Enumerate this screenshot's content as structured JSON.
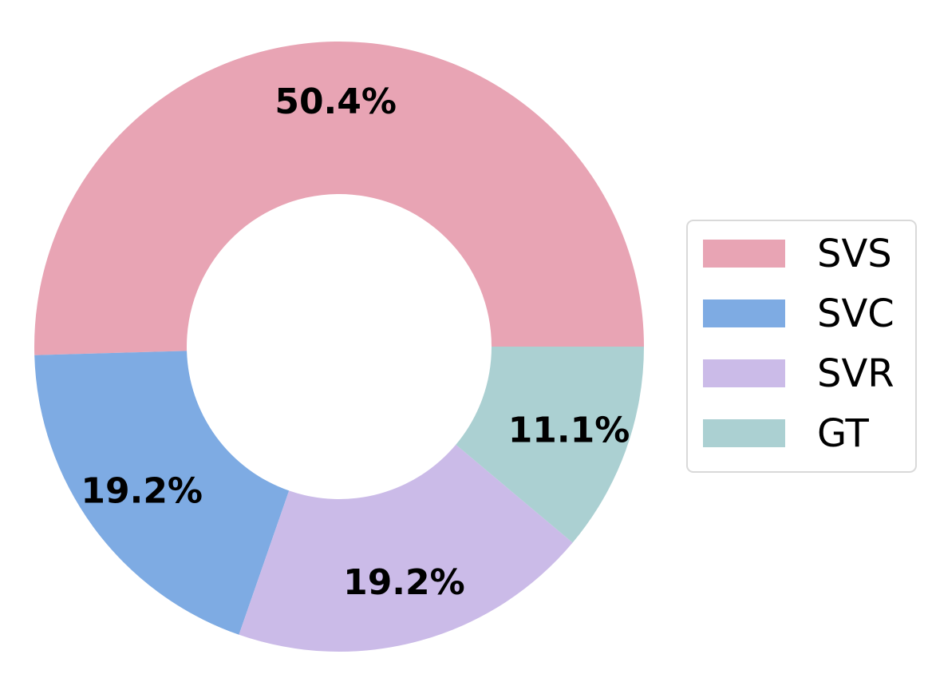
{
  "chart_data": {
    "type": "pie",
    "donut": true,
    "start_angle_deg": 0,
    "direction": "counterclockwise",
    "slices": [
      {
        "label": "SVS",
        "value": 50.4,
        "display": "50.4%",
        "color": "#e8a4b4"
      },
      {
        "label": "SVC",
        "value": 19.2,
        "display": "19.2%",
        "color": "#7eabe3"
      },
      {
        "label": "SVR",
        "value": 19.2,
        "display": "19.2%",
        "color": "#cbbbe8"
      },
      {
        "label": "GT",
        "value": 11.1,
        "display": "11.1%",
        "color": "#abd0d2"
      }
    ],
    "title": "",
    "legend": {
      "placement": "right",
      "entries": [
        "SVS",
        "SVC",
        "SVR",
        "GT"
      ]
    }
  }
}
